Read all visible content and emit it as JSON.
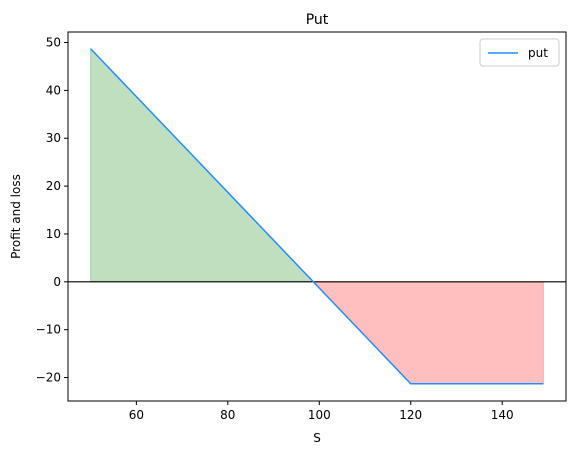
{
  "chart_data": {
    "type": "line",
    "title": "Put",
    "xlabel": "S",
    "ylabel": "Profit and loss",
    "xlim": [
      45.05,
      153.95
    ],
    "ylim": [
      -24.9,
      52.2
    ],
    "xticks": [
      60,
      80,
      100,
      120,
      140
    ],
    "yticks": [
      -20,
      -10,
      0,
      10,
      20,
      30,
      40,
      50
    ],
    "grid": false,
    "legend_position": "top-right",
    "reference_line": {
      "y": 0,
      "color": "#000000"
    },
    "series": [
      {
        "name": "put",
        "color": "#1E90FF",
        "x": [
          50,
          120,
          149
        ],
        "y": [
          48.7,
          -21.3,
          -21.3
        ]
      }
    ],
    "fills": [
      {
        "kind": "profit",
        "color": "#008000",
        "opacity": 0.25,
        "x_from": 50,
        "x_to": 98.7
      },
      {
        "kind": "loss",
        "color": "#FF0000",
        "opacity": 0.25,
        "x_from": 98.7,
        "x_to": 149
      }
    ]
  }
}
